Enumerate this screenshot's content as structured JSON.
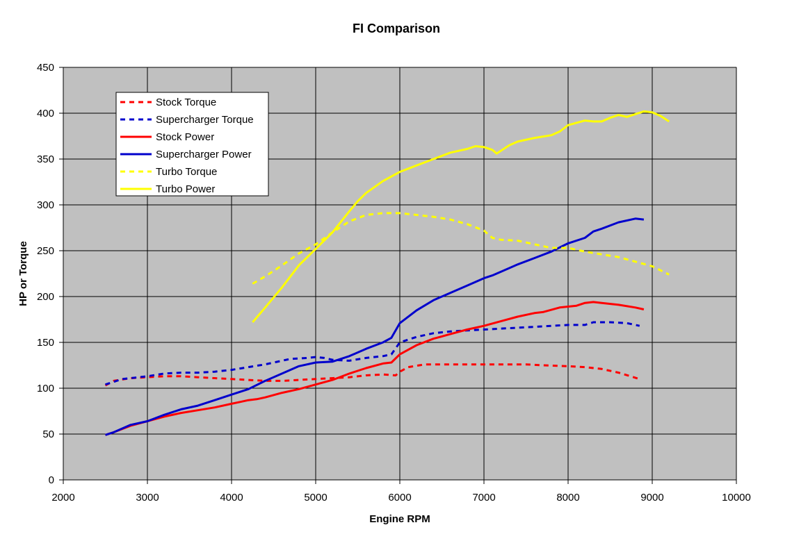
{
  "chart_data": {
    "type": "line",
    "title": "FI Comparison",
    "xlabel": "Engine RPM",
    "ylabel": "HP or Torque",
    "xlim": [
      2000,
      10000
    ],
    "ylim": [
      0,
      450
    ],
    "xticks": [
      2000,
      3000,
      4000,
      5000,
      6000,
      7000,
      8000,
      9000,
      10000
    ],
    "yticks": [
      0,
      50,
      100,
      150,
      200,
      250,
      300,
      350,
      400,
      450
    ],
    "grid": true,
    "background": "#c0c0c0",
    "legend_position": "top-left",
    "series": [
      {
        "name": "Stock Torque",
        "color": "#ff0000",
        "style": "dashed",
        "x": [
          2500,
          2600,
          2800,
          3000,
          3200,
          3400,
          3600,
          3800,
          4000,
          4200,
          4400,
          4600,
          4800,
          5000,
          5200,
          5400,
          5600,
          5800,
          5950,
          6000,
          6100,
          6300,
          6500,
          6800,
          7000,
          7200,
          7500,
          7700,
          8000,
          8200,
          8400,
          8600,
          8850
        ],
        "values": [
          103,
          108,
          111,
          112,
          113,
          113,
          112,
          111,
          110,
          109,
          108,
          108,
          109,
          110,
          111,
          112,
          114,
          115,
          114,
          118,
          123,
          126,
          126,
          126,
          126,
          126,
          126,
          125,
          124,
          123,
          121,
          117,
          110
        ]
      },
      {
        "name": "Supercharger Torque",
        "color": "#0000cc",
        "style": "dashed",
        "x": [
          2500,
          2600,
          2700,
          2800,
          3000,
          3200,
          3400,
          3600,
          3800,
          4000,
          4200,
          4400,
          4600,
          4700,
          4900,
          5000,
          5100,
          5200,
          5400,
          5600,
          5800,
          5900,
          6000,
          6200,
          6400,
          6600,
          6800,
          7000,
          7200,
          7400,
          7600,
          7800,
          8000,
          8200,
          8300,
          8500,
          8700,
          8850
        ],
        "values": [
          104,
          107,
          110,
          111,
          113,
          116,
          117,
          117,
          118,
          120,
          123,
          126,
          130,
          132,
          133,
          134,
          133,
          131,
          130,
          133,
          135,
          137,
          150,
          156,
          160,
          162,
          163,
          164,
          165,
          166,
          167,
          168,
          169,
          169,
          172,
          172,
          171,
          168
        ]
      },
      {
        "name": "Stock Power",
        "color": "#ff0000",
        "style": "solid",
        "x": [
          2500,
          2600,
          2800,
          3000,
          3200,
          3400,
          3600,
          3800,
          4000,
          4100,
          4200,
          4300,
          4400,
          4600,
          4800,
          5000,
          5200,
          5400,
          5600,
          5800,
          5900,
          6000,
          6200,
          6400,
          6600,
          6800,
          7000,
          7200,
          7400,
          7600,
          7700,
          7900,
          8100,
          8200,
          8300,
          8400,
          8600,
          8800,
          8900
        ],
        "values": [
          49,
          52,
          59,
          64,
          69,
          73,
          76,
          79,
          83,
          85,
          87,
          88,
          90,
          95,
          99,
          104,
          109,
          116,
          122,
          127,
          128,
          137,
          147,
          154,
          159,
          164,
          168,
          173,
          178,
          182,
          183,
          188,
          190,
          193,
          194,
          193,
          191,
          188,
          186
        ]
      },
      {
        "name": "Supercharger Power",
        "color": "#0000cc",
        "style": "solid",
        "x": [
          2500,
          2600,
          2800,
          3000,
          3200,
          3400,
          3600,
          3800,
          4000,
          4200,
          4400,
          4600,
          4800,
          5000,
          5200,
          5400,
          5600,
          5800,
          5900,
          6000,
          6200,
          6400,
          6600,
          6800,
          7000,
          7100,
          7200,
          7400,
          7600,
          7800,
          8000,
          8200,
          8300,
          8400,
          8600,
          8800,
          8900
        ],
        "values": [
          49,
          52,
          60,
          64,
          71,
          77,
          81,
          87,
          93,
          99,
          108,
          116,
          124,
          128,
          129,
          135,
          143,
          150,
          155,
          171,
          185,
          196,
          204,
          212,
          220,
          223,
          227,
          235,
          242,
          249,
          258,
          264,
          271,
          274,
          281,
          285,
          284
        ]
      },
      {
        "name": "Turbo Torque",
        "color": "#ffff00",
        "style": "dashed",
        "x": [
          4250,
          4400,
          4600,
          4800,
          5000,
          5200,
          5400,
          5600,
          5800,
          6000,
          6200,
          6400,
          6600,
          6800,
          7000,
          7100,
          7200,
          7400,
          7600,
          7800,
          8000,
          8200,
          8400,
          8600,
          8800,
          9000,
          9200
        ],
        "values": [
          214,
          222,
          234,
          247,
          257,
          270,
          282,
          289,
          291,
          291,
          289,
          287,
          284,
          279,
          272,
          264,
          262,
          261,
          257,
          253,
          253,
          249,
          246,
          243,
          238,
          233,
          224
        ]
      },
      {
        "name": "Turbo Power",
        "color": "#ffff00",
        "style": "solid",
        "x": [
          4250,
          4400,
          4600,
          4800,
          5000,
          5200,
          5400,
          5500,
          5600,
          5800,
          6000,
          6200,
          6400,
          6600,
          6800,
          6900,
          7000,
          7100,
          7150,
          7300,
          7400,
          7600,
          7800,
          7900,
          8000,
          8200,
          8300,
          8400,
          8500,
          8600,
          8700,
          8800,
          8900,
          9000,
          9100,
          9200
        ],
        "values": [
          172,
          188,
          210,
          234,
          252,
          270,
          293,
          304,
          313,
          326,
          336,
          343,
          350,
          357,
          361,
          364,
          363,
          360,
          356,
          365,
          369,
          373,
          376,
          380,
          387,
          392,
          391,
          391,
          395,
          398,
          396,
          399,
          402,
          401,
          397,
          391
        ]
      }
    ]
  }
}
